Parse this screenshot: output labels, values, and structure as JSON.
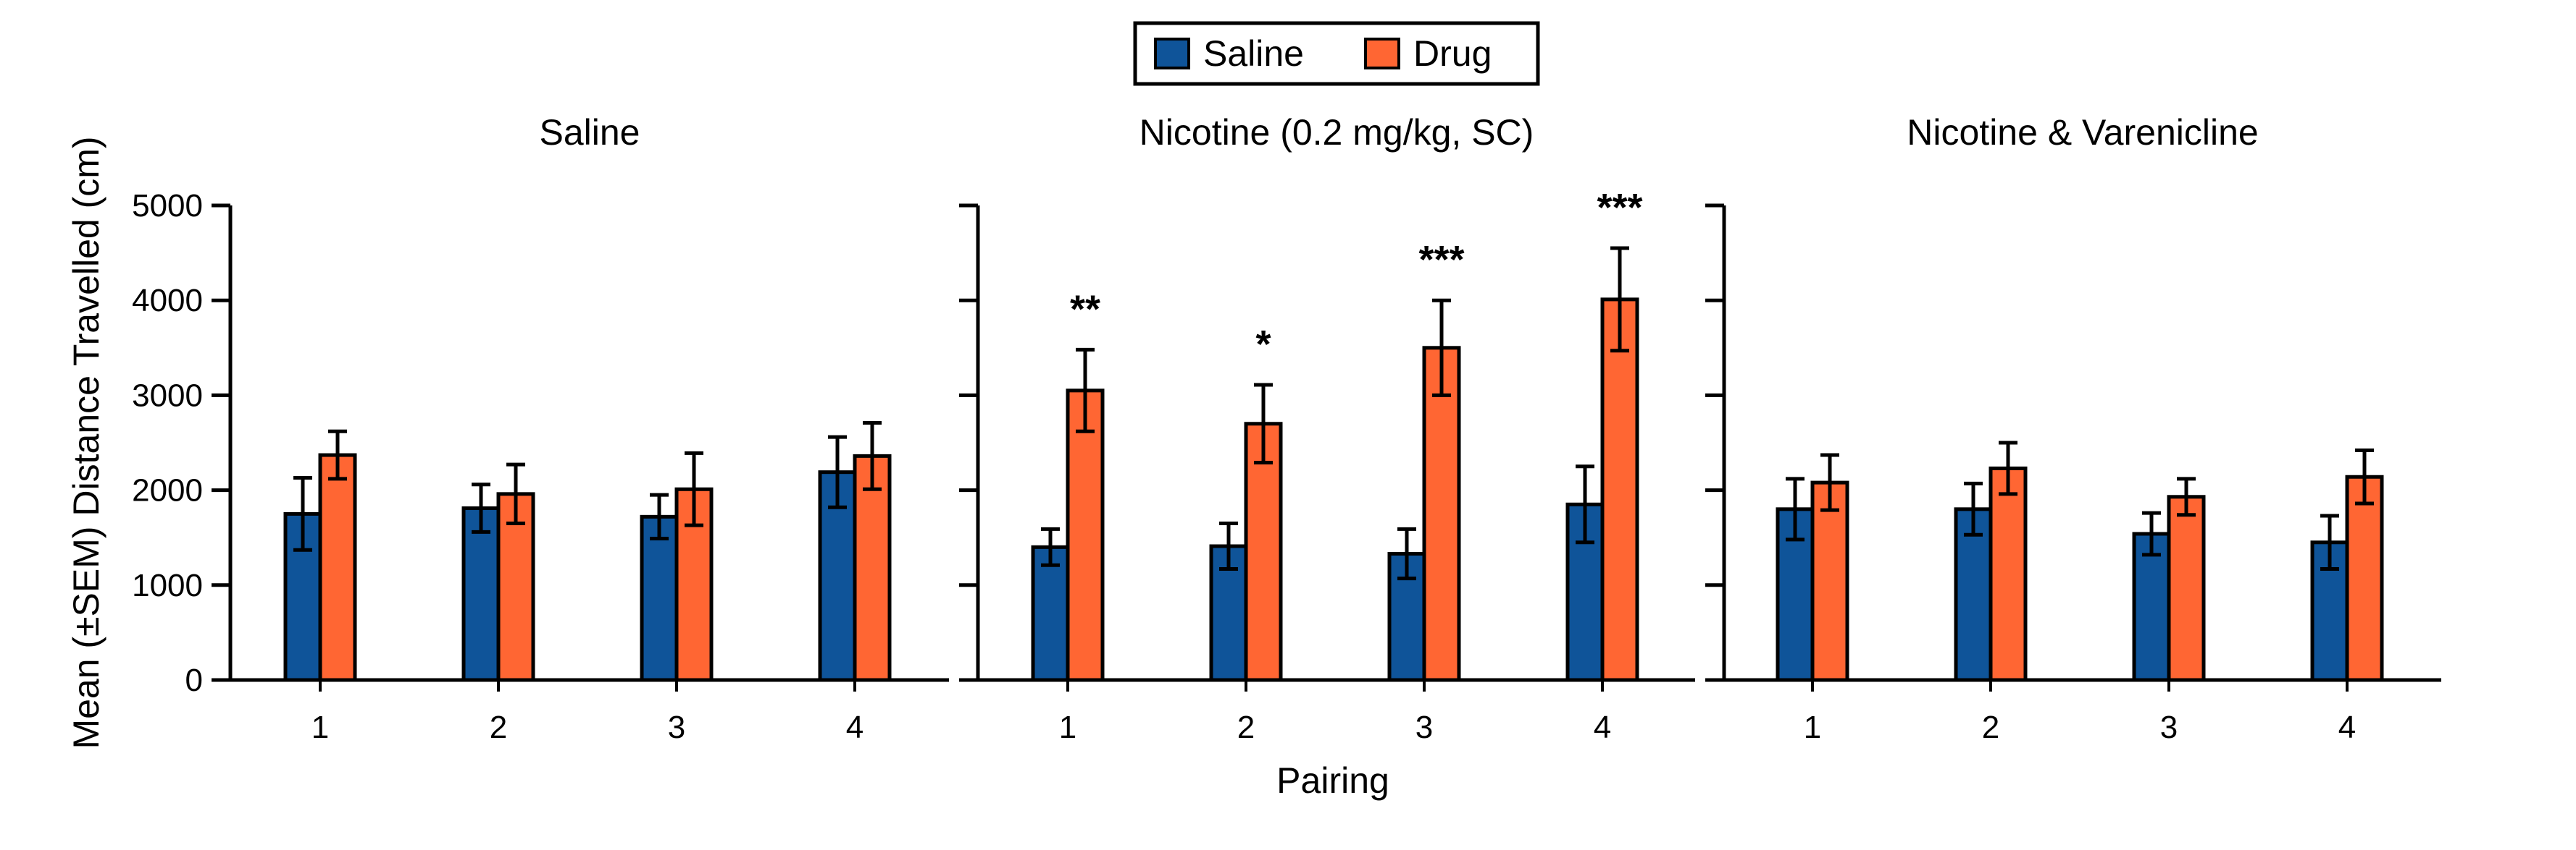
{
  "chart_data": {
    "type": "bar",
    "ylabel": "Mean (±SEM) Distance Travelled (cm)",
    "xlabel": "Pairing",
    "ylim": [
      0,
      5000
    ],
    "yticks": [
      "0",
      "1000",
      "2000",
      "3000",
      "4000",
      "5000"
    ],
    "categories": [
      "1",
      "2",
      "3",
      "4"
    ],
    "legend": {
      "placement": "top-center",
      "entries": [
        {
          "name": "Saline",
          "color": "#0f5499"
        },
        {
          "name": "Drug",
          "color": "#ff6633"
        }
      ]
    },
    "panels": [
      {
        "title": "Saline",
        "series": [
          {
            "name": "Saline",
            "values": [
              1750,
              1810,
              1720,
              2190
            ],
            "sem": [
              380,
              250,
              230,
              370
            ]
          },
          {
            "name": "Drug",
            "values": [
              2370,
              1960,
              2010,
              2360
            ],
            "sem": [
              250,
              310,
              380,
              350
            ]
          }
        ],
        "significance": [
          "",
          "",
          "",
          ""
        ]
      },
      {
        "title": "Nicotine (0.2 mg/kg, SC)",
        "series": [
          {
            "name": "Saline",
            "values": [
              1400,
              1410,
              1330,
              1850
            ],
            "sem": [
              190,
              240,
              260,
              400
            ]
          },
          {
            "name": "Drug",
            "values": [
              3050,
              2700,
              3500,
              4010
            ],
            "sem": [
              430,
              410,
              500,
              540
            ]
          }
        ],
        "significance": [
          "**",
          "*",
          "***",
          "***"
        ]
      },
      {
        "title": "Nicotine & Varenicline",
        "series": [
          {
            "name": "Saline",
            "values": [
              1800,
              1800,
              1540,
              1450
            ],
            "sem": [
              320,
              270,
              220,
              280
            ]
          },
          {
            "name": "Drug",
            "values": [
              2080,
              2230,
              1930,
              2140
            ],
            "sem": [
              290,
              270,
              190,
              280
            ]
          }
        ],
        "significance": [
          "",
          "",
          "",
          ""
        ]
      }
    ]
  }
}
